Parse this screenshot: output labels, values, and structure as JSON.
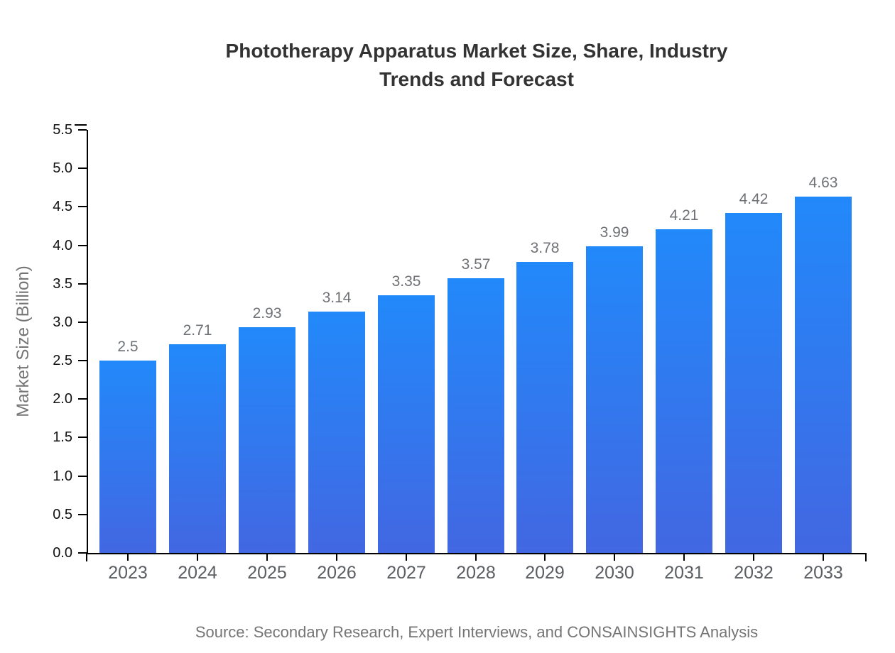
{
  "page": {
    "background_color": "#ffffff"
  },
  "header": {
    "title": "Phototherapy Apparatus Market Size, Share, Industry Trends and Forecast"
  },
  "footer": {
    "source_note": "Source: Secondary Research, Expert Interviews, and CONSAINSIGHTS Analysis"
  },
  "chart_data": {
    "type": "bar",
    "title": "Phototherapy Apparatus Market Size, Share, Industry Trends and Forecast",
    "categories": [
      "2023",
      "2024",
      "2025",
      "2026",
      "2027",
      "2028",
      "2029",
      "2030",
      "2031",
      "2032",
      "2033"
    ],
    "values": [
      2.5,
      2.71,
      2.93,
      3.14,
      3.35,
      3.57,
      3.78,
      3.99,
      4.21,
      4.42,
      4.63
    ],
    "bar_labels": [
      "2.5",
      "2.71",
      "2.93",
      "3.14",
      "3.35",
      "3.57",
      "3.78",
      "3.99",
      "4.21",
      "4.42",
      "4.63"
    ],
    "xlabel": "",
    "ylabel": "Market Size (Billion)",
    "ylim": [
      0.0,
      5.5
    ],
    "ytick_interval": 0.5,
    "ytick_labels": [
      "0.0",
      "0.5",
      "1.0",
      "1.5",
      "2.0",
      "2.5",
      "3.0",
      "3.5",
      "4.0",
      "4.5",
      "5.0",
      "5.5"
    ],
    "grid": false,
    "legend": null,
    "colors": {
      "bar_gradient_top": "#2289fa",
      "bar_gradient_bottom": "#4267e2",
      "axis": "#000000",
      "title_text": "#333333",
      "ytick_text": "#111111",
      "xtick_text": "#5b5e62",
      "bar_label_text": "#6e7175",
      "muted_text": "#757575"
    }
  }
}
